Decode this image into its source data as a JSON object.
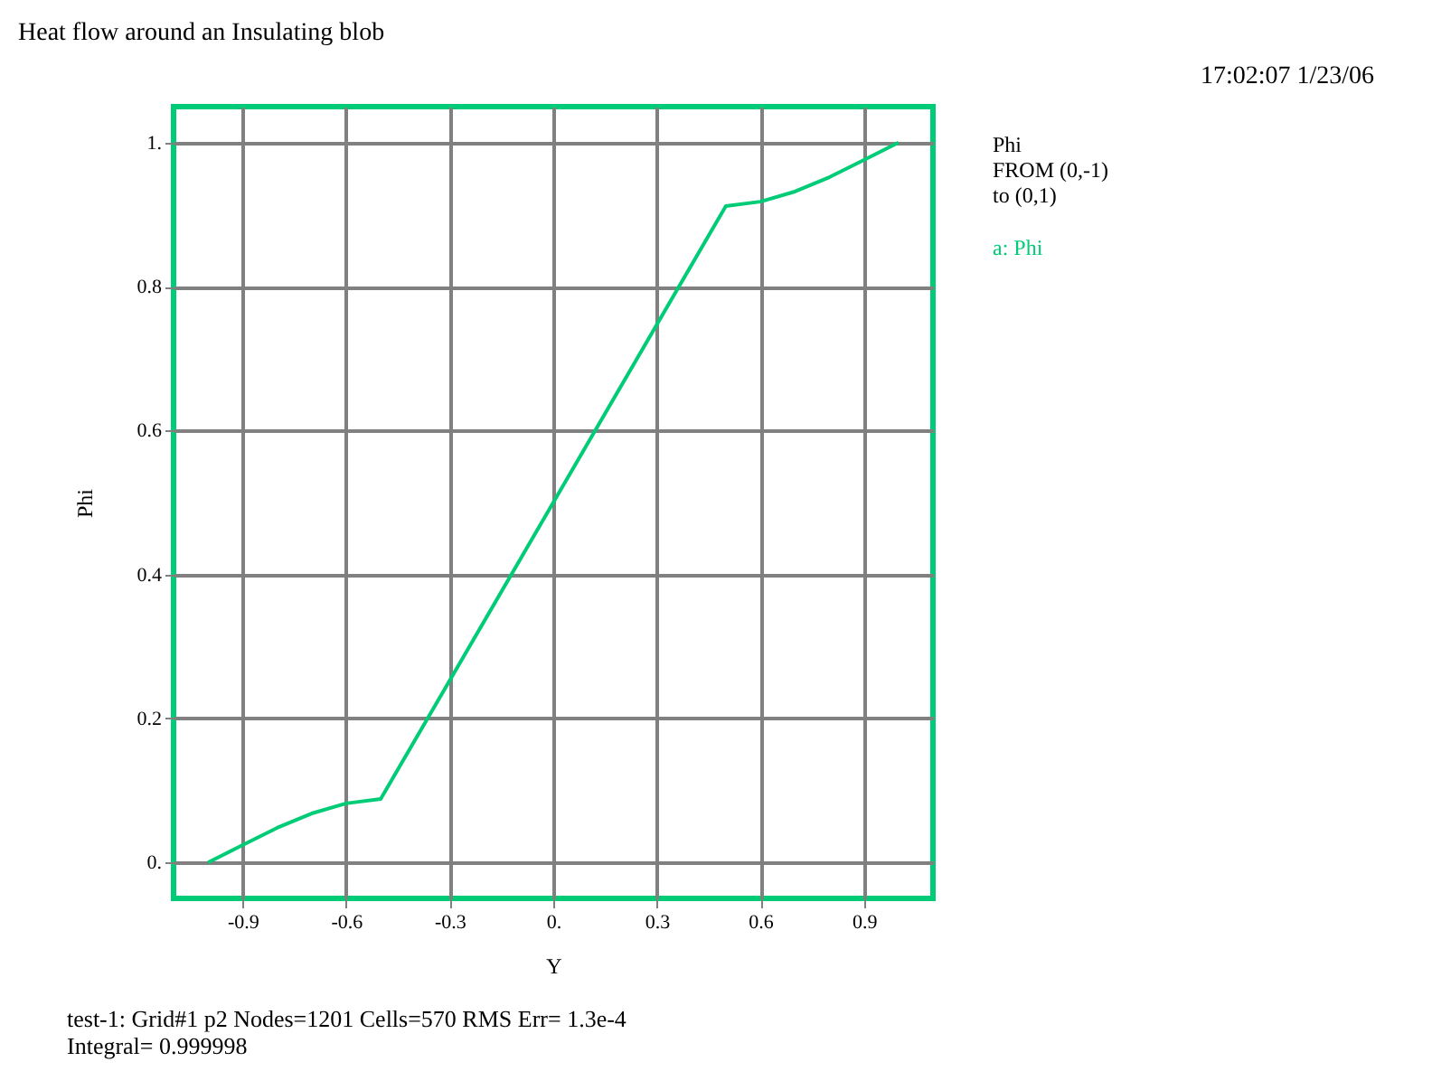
{
  "chart_data": {
    "type": "line",
    "title": "Heat flow around an Insulating blob",
    "xlabel": "Y",
    "ylabel": "Phi",
    "x": [
      -1.0,
      -0.9,
      -0.8,
      -0.7,
      -0.6,
      -0.5,
      0.5,
      0.6,
      0.7,
      0.8,
      0.9,
      1.0
    ],
    "series": [
      {
        "name": "a: Phi",
        "color": "#00cc77",
        "values": [
          0.0,
          0.024,
          0.048,
          0.068,
          0.082,
          0.088,
          0.912,
          0.918,
          0.932,
          0.952,
          0.976,
          1.0
        ]
      }
    ],
    "xlim": [
      -1.1,
      1.1
    ],
    "ylim": [
      -0.05,
      1.05
    ],
    "xticks": [
      -0.9,
      -0.6,
      -0.3,
      {
        "value": 0,
        "label": "0."
      },
      0.3,
      0.6,
      0.9
    ],
    "yticks": [
      {
        "value": 0,
        "label": "0."
      },
      0.2,
      0.4,
      0.6,
      0.8,
      {
        "value": 1,
        "label": "1."
      }
    ],
    "grid": true,
    "legend": "right",
    "annotations": [
      "17:02:07 1/23/06",
      "Phi",
      "FROM (0,-1)",
      "to (0,1)",
      "test-1:  Grid#1  p2  Nodes=1201  Cells=570  RMS Err= 1.3e-4",
      "Integral=  0.999998"
    ]
  }
}
